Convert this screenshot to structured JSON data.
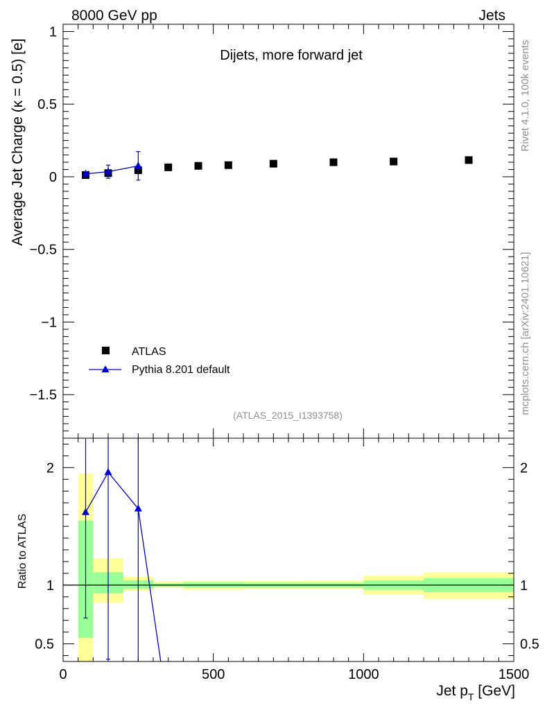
{
  "header": {
    "left": "8000 GeV pp",
    "right": "Jets"
  },
  "side_text": {
    "rivet": "Rivet 4.1.0,  100k events",
    "mcplots": "mcplots.cern.ch [arXiv:2401.10621]"
  },
  "colors": {
    "mc": "#0000cc",
    "data": "#000000",
    "band_inner": "#99ff99",
    "band_outer": "#ffff99",
    "watermark": "#909090"
  },
  "chart_data": [
    {
      "type": "scatter",
      "title": "Dijets, more forward jet",
      "analysis_label": "(ATLAS_2015_I1393758)",
      "ylabel": "Average Jet Charge (κ = 0.5) [e]",
      "xlim": [
        0,
        1500
      ],
      "ylim": [
        -1.8,
        1.05
      ],
      "yticks": [
        -1.5,
        -1,
        -0.5,
        0,
        0.5,
        1
      ],
      "ytick_labels": [
        "−1.5",
        "−1",
        "−0.5",
        "0",
        "0.5",
        "1"
      ],
      "legend": {
        "position": "bottom-left",
        "entries": [
          "ATLAS",
          "Pythia 8.201 default"
        ]
      },
      "series": [
        {
          "name": "ATLAS",
          "marker": "square",
          "x": [
            75,
            150,
            250,
            350,
            450,
            550,
            700,
            900,
            1100,
            1350
          ],
          "y": [
            0.012,
            0.025,
            0.045,
            0.065,
            0.075,
            0.08,
            0.09,
            0.1,
            0.105,
            0.115
          ]
        },
        {
          "name": "Pythia 8.201 default",
          "marker": "triangle",
          "x": [
            75,
            150,
            250
          ],
          "y": [
            0.02,
            0.035,
            0.075
          ],
          "yerr": [
            0.012,
            0.045,
            0.098
          ]
        }
      ]
    },
    {
      "type": "line",
      "ylabel": "Ratio to ATLAS",
      "xlabel": "Jet p",
      "xlabel_sub": "T",
      "xlabel_unit": " [GeV]",
      "xlim": [
        0,
        1500
      ],
      "ylim": [
        0.35,
        2.25
      ],
      "xticks": [
        0,
        500,
        1000,
        1500
      ],
      "xtick_labels": [
        "0",
        "500",
        "1000",
        "1500"
      ],
      "yticks": [
        0.5,
        1,
        2
      ],
      "ytick_labels": [
        "0.5",
        "1",
        "2"
      ],
      "bands": [
        {
          "x0": 50,
          "x1": 100,
          "inner": [
            0.55,
            1.55
          ],
          "outer": [
            0.3,
            1.95
          ]
        },
        {
          "x0": 100,
          "x1": 200,
          "inner": [
            0.93,
            1.11
          ],
          "outer": [
            0.85,
            1.23
          ]
        },
        {
          "x0": 200,
          "x1": 300,
          "inner": [
            0.97,
            1.04
          ],
          "outer": [
            0.95,
            1.07
          ]
        },
        {
          "x0": 300,
          "x1": 400,
          "inner": [
            0.985,
            1.015
          ],
          "outer": [
            0.975,
            1.03
          ]
        },
        {
          "x0": 400,
          "x1": 600,
          "inner": [
            0.98,
            1.025
          ],
          "outer": [
            0.96,
            1.04
          ]
        },
        {
          "x0": 600,
          "x1": 800,
          "inner": [
            0.98,
            1.02
          ],
          "outer": [
            0.965,
            1.035
          ]
        },
        {
          "x0": 800,
          "x1": 1000,
          "inner": [
            0.98,
            1.02
          ],
          "outer": [
            0.965,
            1.04
          ]
        },
        {
          "x0": 1000,
          "x1": 1200,
          "inner": [
            0.96,
            1.04
          ],
          "outer": [
            0.92,
            1.08
          ]
        },
        {
          "x0": 1200,
          "x1": 1500,
          "inner": [
            0.94,
            1.06
          ],
          "outer": [
            0.88,
            1.11
          ]
        }
      ],
      "series": [
        {
          "name": "Pythia 8.201 default / ATLAS",
          "marker": "triangle",
          "x": [
            75,
            150,
            250
          ],
          "y": [
            1.62,
            1.96,
            1.65
          ],
          "ylow": [
            0.72,
            0.37,
            0.3
          ],
          "yhigh": [
            2.3,
            2.3,
            2.3
          ],
          "tail_to": {
            "x": 325,
            "y": 0.35
          }
        }
      ]
    }
  ]
}
